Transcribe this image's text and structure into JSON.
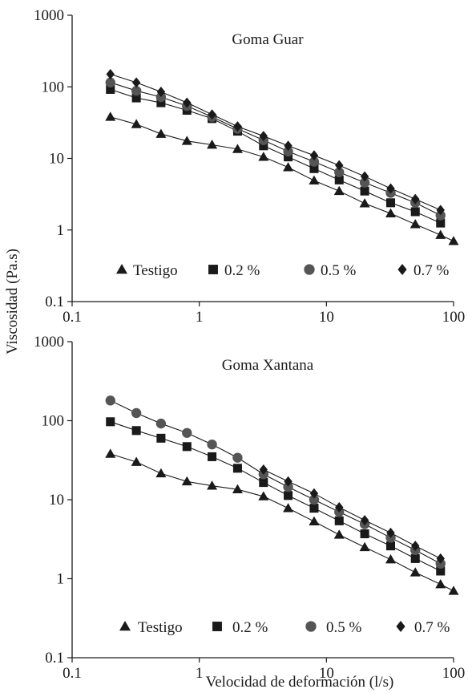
{
  "ylabel": "Viscosidad (Pa.s)",
  "xlabel": "Velocidad de deformación (l/s)",
  "chart_data": [
    {
      "type": "scatter",
      "title": "Goma Guar",
      "xscale": "log",
      "yscale": "log",
      "xlim": [
        0.1,
        100
      ],
      "ylim": [
        0.1,
        1000
      ],
      "x_ticks": [
        "0.1",
        "1",
        "10",
        "100"
      ],
      "y_ticks": [
        "0.1",
        "1",
        "10",
        "100",
        "1000"
      ],
      "legend_placement": "bottom",
      "x": [
        0.2,
        0.32,
        0.5,
        0.8,
        1.26,
        2,
        3.2,
        5,
        8,
        12.6,
        20,
        32,
        50,
        79,
        100
      ],
      "series": [
        {
          "name": "Testigo",
          "marker": "triangle",
          "color": "#1a1a1a",
          "values": [
            38,
            30,
            22,
            17.5,
            15.5,
            13.5,
            10.5,
            7.5,
            4.9,
            3.5,
            2.35,
            1.7,
            1.2,
            0.85,
            0.7
          ]
        },
        {
          "name": "0.2 %",
          "marker": "square",
          "color": "#1a1a1a",
          "values": [
            92,
            70,
            60,
            47,
            36,
            24,
            15,
            10.5,
            7.2,
            5,
            3.5,
            2.4,
            1.8,
            1.25,
            null
          ]
        },
        {
          "name": "0.5 %",
          "marker": "circle",
          "color": "#555555",
          "values": [
            115,
            88,
            72,
            54,
            38,
            26,
            18,
            12.5,
            9,
            6.4,
            4.6,
            3.3,
            2.4,
            1.6,
            null
          ]
        },
        {
          "name": "0.7 %",
          "marker": "diamond",
          "color": "#1a1a1a",
          "values": [
            150,
            115,
            85,
            60,
            41,
            28,
            20.5,
            15,
            11,
            8,
            5.6,
            3.8,
            2.7,
            1.9,
            null
          ]
        }
      ]
    },
    {
      "type": "scatter",
      "title": "Goma Xantana",
      "xscale": "log",
      "yscale": "log",
      "xlim": [
        0.1,
        100
      ],
      "ylim": [
        0.1,
        1000
      ],
      "x_ticks": [
        "0.1",
        "1",
        "10",
        "100"
      ],
      "y_ticks": [
        "0.1",
        "1",
        "10",
        "100",
        "1000"
      ],
      "legend_placement": "bottom",
      "x": [
        0.2,
        0.32,
        0.5,
        0.8,
        1.26,
        2,
        3.2,
        5,
        8,
        12.6,
        20,
        32,
        50,
        79,
        100
      ],
      "series": [
        {
          "name": "Testigo",
          "marker": "triangle",
          "color": "#1a1a1a",
          "values": [
            38,
            30,
            21.5,
            17,
            15,
            13.5,
            11,
            7.8,
            5.3,
            3.6,
            2.5,
            1.75,
            1.2,
            0.85,
            0.7
          ]
        },
        {
          "name": "0.2 %",
          "marker": "square",
          "color": "#1a1a1a",
          "values": [
            97,
            75,
            60,
            47,
            35,
            25,
            16.5,
            11.3,
            7.8,
            5.4,
            3.7,
            2.6,
            1.8,
            1.25,
            null
          ]
        },
        {
          "name": "0.5 %",
          "marker": "circle",
          "color": "#555555",
          "values": [
            180,
            125,
            92,
            70,
            50,
            34,
            21,
            14.5,
            10,
            7,
            4.9,
            3.3,
            2.3,
            1.55,
            null
          ]
        },
        {
          "name": "0.7 %",
          "marker": "diamond",
          "color": "#1a1a1a",
          "values": [
            null,
            null,
            null,
            null,
            null,
            null,
            24,
            17,
            12,
            8,
            5.5,
            3.8,
            2.6,
            1.8,
            null
          ]
        }
      ]
    }
  ]
}
